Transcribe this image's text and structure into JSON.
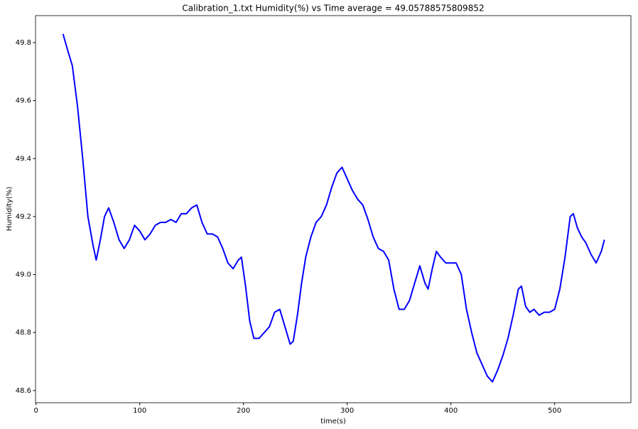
{
  "chart_data": {
    "type": "line",
    "title": "Calibration_1.txt  Humidity(%) vs Time  average = 49.05788575809852",
    "x_label": "time(s)",
    "y_label": "Humidity(%)",
    "color": "#0000ff",
    "x": [
      26,
      30,
      35,
      40,
      45,
      50,
      55,
      58,
      62,
      66,
      70,
      75,
      80,
      85,
      90,
      95,
      100,
      105,
      110,
      115,
      120,
      125,
      130,
      135,
      140,
      145,
      150,
      155,
      160,
      165,
      170,
      175,
      180,
      185,
      190,
      195,
      198,
      202,
      206,
      210,
      215,
      220,
      225,
      230,
      235,
      240,
      245,
      248,
      252,
      256,
      260,
      265,
      270,
      275,
      280,
      285,
      290,
      295,
      300,
      305,
      310,
      315,
      320,
      325,
      330,
      335,
      340,
      345,
      350,
      355,
      360,
      365,
      370,
      375,
      378,
      382,
      386,
      390,
      395,
      400,
      405,
      410,
      415,
      420,
      425,
      430,
      435,
      440,
      445,
      450,
      455,
      460,
      465,
      468,
      472,
      476,
      480,
      485,
      490,
      495,
      500,
      505,
      510,
      515,
      518,
      522,
      526,
      530,
      535,
      540,
      545,
      548
    ],
    "values": [
      49.83,
      49.78,
      49.72,
      49.58,
      49.4,
      49.2,
      49.1,
      49.05,
      49.12,
      49.2,
      49.23,
      49.18,
      49.12,
      49.09,
      49.12,
      49.17,
      49.15,
      49.12,
      49.14,
      49.17,
      49.18,
      49.18,
      49.19,
      49.18,
      49.21,
      49.21,
      49.23,
      49.24,
      49.18,
      49.14,
      49.14,
      49.13,
      49.09,
      49.04,
      49.02,
      49.05,
      49.06,
      48.96,
      48.84,
      48.78,
      48.78,
      48.8,
      48.82,
      48.87,
      48.88,
      48.82,
      48.76,
      48.77,
      48.86,
      48.97,
      49.06,
      49.13,
      49.18,
      49.2,
      49.24,
      49.3,
      49.35,
      49.37,
      49.33,
      49.29,
      49.26,
      49.24,
      49.19,
      49.13,
      49.09,
      49.08,
      49.05,
      48.95,
      48.88,
      48.88,
      48.91,
      48.97,
      49.03,
      48.97,
      48.95,
      49.02,
      49.08,
      49.06,
      49.04,
      49.04,
      49.04,
      49.0,
      48.88,
      48.8,
      48.73,
      48.69,
      48.65,
      48.63,
      48.67,
      48.72,
      48.78,
      48.86,
      48.95,
      48.96,
      48.89,
      48.87,
      48.88,
      48.86,
      48.87,
      48.87,
      48.88,
      48.95,
      49.06,
      49.2,
      49.21,
      49.16,
      49.13,
      49.11,
      49.07,
      49.04,
      49.08,
      49.12
    ],
    "xlim": [
      -0.5,
      573.5
    ],
    "ylim": [
      48.558,
      49.893
    ],
    "xticks": [
      0,
      100,
      200,
      300,
      400,
      500
    ],
    "yticks": [
      48.6,
      48.8,
      {
        "value": 49,
        "label": "49.0"
      },
      49.2,
      49.4,
      49.6,
      49.8
    ]
  }
}
